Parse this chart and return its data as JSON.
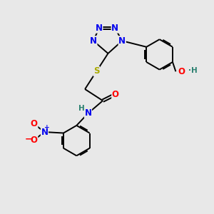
{
  "bg_color": "#e8e8e8",
  "atom_colors": {
    "C": "#000000",
    "N": "#0000ee",
    "O": "#ff0000",
    "S": "#aaaa00",
    "H": "#2a7f6f"
  },
  "bond_color": "#000000",
  "figsize": [
    3.0,
    3.0
  ],
  "dpi": 100,
  "xlim": [
    0,
    10
  ],
  "ylim": [
    0,
    10
  ]
}
